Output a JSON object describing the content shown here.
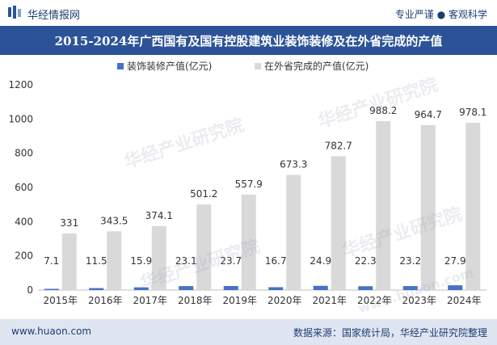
{
  "brand": {
    "name": "华经情报网",
    "icon": "huajing-logo-icon"
  },
  "tagline": "专业严谨 ● 客观科学",
  "title": "2015-2024年广西国有及国有控股建筑业装饰装修及在外省完成的产值",
  "footer": {
    "website": "www.huaon.com",
    "source": "数据来源：国家统计局，华经产业研究院整理"
  },
  "watermarks": [
    "华经产业研究院",
    "www.huaon.com"
  ],
  "colors": {
    "series1": "#4472c4",
    "series2": "#d9d9d9",
    "title_bg": "#2c5398",
    "footer_bg": "#dfe6f2"
  },
  "chart_data": {
    "type": "bar",
    "title": "2015-2024年广西国有及国有控股建筑业装饰装修及在外省完成的产值",
    "categories": [
      "2015年",
      "2016年",
      "2017年",
      "2018年",
      "2019年",
      "2020年",
      "2021年",
      "2022年",
      "2023年",
      "2024年"
    ],
    "series": [
      {
        "name": "装饰装修产值(亿元)",
        "values": [
          7.1,
          11.5,
          15.9,
          23.1,
          23.7,
          16.7,
          24.9,
          22.3,
          23.2,
          27.9
        ],
        "labels": [
          "7.1",
          "11.5",
          "15.9",
          "23.1",
          "23.7",
          "16.7",
          "24.9",
          "22.3",
          "23.2",
          "27.9"
        ]
      },
      {
        "name": "在外省完成的产值(亿元)",
        "values": [
          331,
          343.5,
          374.1,
          501.2,
          557.9,
          673.3,
          782.7,
          988.2,
          964.7,
          978.1
        ],
        "labels": [
          "331",
          "343.5",
          "374.1",
          "501.2",
          "557.9",
          "673.3",
          "782.7",
          "988.2",
          "964.7",
          "978.1"
        ]
      }
    ],
    "ylim": [
      0,
      1200
    ],
    "yticks": [
      0,
      200,
      400,
      600,
      800,
      1000,
      1200
    ],
    "legend": "top-center",
    "grid": false
  }
}
